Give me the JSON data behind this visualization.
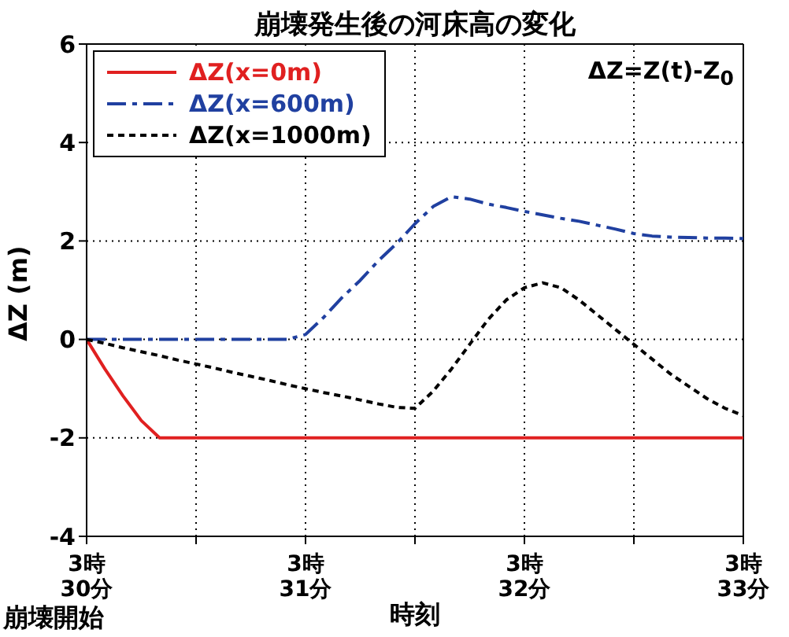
{
  "chart_data": {
    "type": "line",
    "title": "崩壊発生後の河床高の変化",
    "xlabel": "時刻",
    "ylabel": "ΔZ (m)",
    "annotations": [
      "ΔZ=Z(t)-Z$_{0}$",
      "崩壊開始"
    ],
    "categories": [
      "3時\n30分",
      null,
      null,
      null,
      null,
      null,
      null,
      null,
      null,
      null,
      null,
      null,
      "3時\n31分",
      null,
      null,
      null,
      null,
      null,
      null,
      null,
      null,
      null,
      null,
      null,
      "3時\n32分",
      null,
      null,
      null,
      null,
      null,
      null,
      null,
      null,
      null,
      null,
      null,
      "3時\n33分"
    ],
    "ylim": [
      -4,
      6
    ],
    "yticks": [
      -4,
      -2,
      0,
      2,
      4,
      6
    ],
    "grid": true,
    "legend": "top left",
    "series": [
      {
        "name": "ΔZ(x=0m)",
        "color": "#e02020",
        "line_style": "solid",
        "values": [
          0,
          -0.6,
          -1.15,
          -1.65,
          -2,
          -2,
          -2,
          -2,
          -2,
          -2,
          -2,
          -2,
          -2,
          -2,
          -2,
          -2,
          -2,
          -2,
          -2,
          -2,
          -2,
          -2,
          -2,
          -2,
          -2,
          -2,
          -2,
          -2,
          -2,
          -2,
          -2,
          -2,
          -2,
          -2,
          -2,
          -2,
          -2
        ]
      },
      {
        "name": "ΔZ(x=600m)",
        "color": "#2040a0",
        "line_style": "dashed",
        "values": [
          0,
          0,
          0,
          0,
          0,
          0,
          0,
          0,
          0,
          0,
          0,
          0,
          0.1,
          0.45,
          0.85,
          1.2,
          1.6,
          1.95,
          2.35,
          2.7,
          2.9,
          2.85,
          2.75,
          2.68,
          2.6,
          2.53,
          2.46,
          2.4,
          2.32,
          2.24,
          2.15,
          2.1,
          2.08,
          2.07,
          2.06,
          2.06,
          2.05
        ]
      },
      {
        "name": "ΔZ(x=1000m)",
        "color": "#000000",
        "line_style": "dotted",
        "values": [
          0,
          -0.08,
          -0.17,
          -0.25,
          -0.33,
          -0.42,
          -0.5,
          -0.58,
          -0.67,
          -0.75,
          -0.83,
          -0.92,
          -1.0,
          -1.08,
          -1.15,
          -1.23,
          -1.31,
          -1.38,
          -1.4,
          -1.05,
          -0.6,
          -0.1,
          0.4,
          0.8,
          1.05,
          1.15,
          1.05,
          0.8,
          0.5,
          0.2,
          -0.1,
          -0.4,
          -0.7,
          -0.95,
          -1.2,
          -1.4,
          -1.55
        ]
      }
    ]
  }
}
